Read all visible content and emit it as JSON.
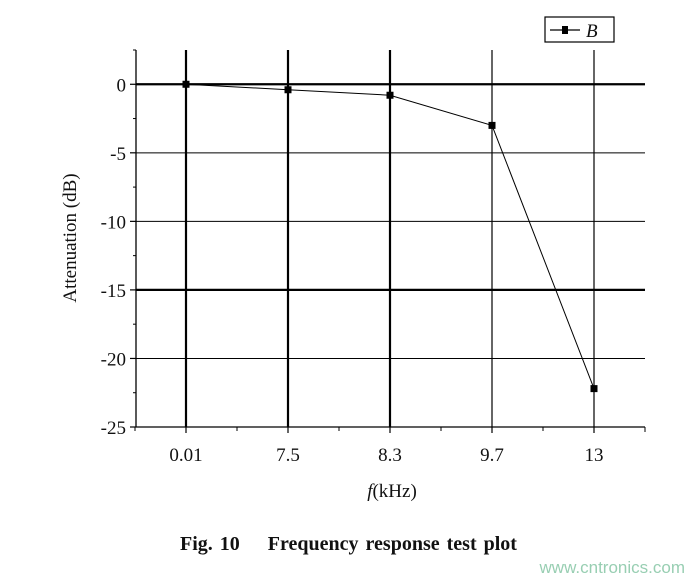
{
  "chart_data": {
    "type": "line",
    "categories": [
      "0.01",
      "7.5",
      "8.3",
      "9.7",
      "13"
    ],
    "series": [
      {
        "name": "B",
        "values": [
          0,
          -0.4,
          -0.8,
          -3,
          -22.2
        ],
        "marker": "square",
        "color": "#000000"
      }
    ],
    "xlabel_italic": "f",
    "xlabel": "(kHz)",
    "ylabel": "Attenuation (dB)",
    "ylim": [
      -25,
      2.5
    ],
    "yticks": [
      0,
      -5,
      -10,
      -15,
      -20,
      -25
    ],
    "ytick_labels": [
      "0",
      "-5",
      "-10",
      "-15",
      "-20",
      "-25"
    ],
    "grid": true,
    "legend_position": "top-right"
  },
  "caption": "Fig. 10    Frequency response test plot",
  "watermark": "www.cntronics.com"
}
